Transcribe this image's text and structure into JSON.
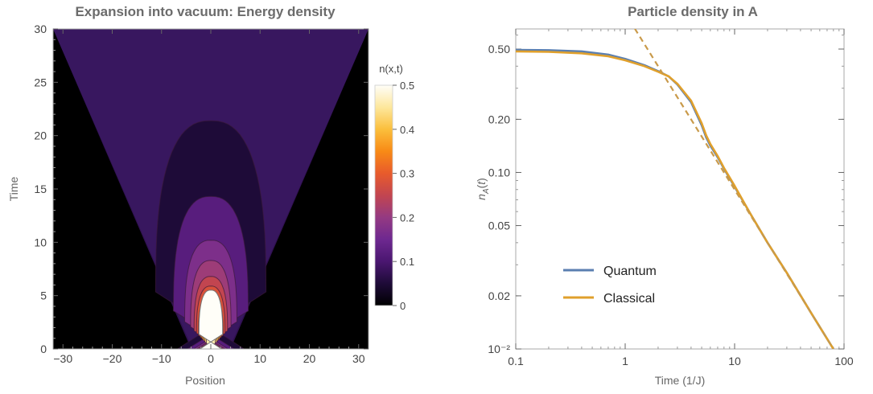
{
  "chart_data": [
    {
      "type": "heatmap",
      "title": "Expansion into vacuum: Energy density",
      "xlabel": "Position",
      "ylabel": "Time",
      "xlim": [
        -32,
        32
      ],
      "ylim": [
        0,
        30
      ],
      "xticks": [
        -30,
        -20,
        -10,
        0,
        10,
        20,
        30
      ],
      "xtick_labels": [
        "−30",
        "−20",
        "−10",
        "0",
        "10",
        "20",
        "30"
      ],
      "yticks": [
        0,
        5,
        10,
        15,
        20,
        25,
        30
      ],
      "ytick_labels": [
        "0",
        "5",
        "10",
        "15",
        "20",
        "25",
        "30"
      ],
      "colorbar": {
        "label": "n(x,t)",
        "range": [
          0,
          0.5
        ],
        "ticks": [
          0,
          0.1,
          0.2,
          0.3,
          0.4,
          0.5
        ],
        "tick_labels": [
          "0",
          "0.1",
          "0.2",
          "0.3",
          "0.4",
          "0.5"
        ]
      },
      "light_cone": {
        "edge_x_at_t0": 4,
        "edge_x_at_t30": 32,
        "edge_time_at_x32": 16.7
      },
      "contours": [
        {
          "level": 0.05,
          "half_width": 11.2,
          "t_top": 21.4
        },
        {
          "level": 0.12,
          "half_width": 7.6,
          "t_top": 14.3
        },
        {
          "level": 0.17,
          "half_width": 5.3,
          "t_top": 10.2
        },
        {
          "level": 0.21,
          "half_width": 4.1,
          "t_top": 8.3
        },
        {
          "level": 0.25,
          "half_width": 3.4,
          "t_top": 6.8
        },
        {
          "level": 0.28,
          "half_width": 2.9,
          "t_top": 5.9
        },
        {
          "level": 0.31,
          "half_width": 2.5,
          "t_top": 5.1
        },
        {
          "level": 0.34,
          "half_width": 2.1,
          "t_top": 4.4
        },
        {
          "level": 0.37,
          "half_width": 1.8,
          "t_top": 3.8
        },
        {
          "level": 0.4,
          "half_width": 1.5,
          "t_top": 3.2
        },
        {
          "level": 0.43,
          "half_width": 1.2,
          "t_top": 2.6
        },
        {
          "level": 0.46,
          "half_width": 0.9,
          "t_top": 2.1
        }
      ],
      "core": {
        "half_width": 4,
        "t_top": 2.4
      }
    },
    {
      "type": "line",
      "title": "Particle density in A",
      "xlabel": "Time (1/J)",
      "ylabel": "n_A(t)",
      "x_scale": "log",
      "y_scale": "log",
      "xlim": [
        0.1,
        100
      ],
      "ylim": [
        0.01,
        0.65
      ],
      "xticks": [
        0.1,
        1,
        10,
        100
      ],
      "xtick_labels": [
        "0.1",
        "1",
        "10",
        "100"
      ],
      "yticks": [
        0.01,
        0.02,
        0.05,
        0.1,
        0.2,
        0.5
      ],
      "ytick_labels": [
        "10⁻²",
        "0.02",
        "0.05",
        "0.10",
        "0.20",
        "0.50"
      ],
      "legend_position": "bottom-left",
      "series": [
        {
          "name": "Quantum",
          "color": "#5b7fb0",
          "x": [
            0.1,
            0.2,
            0.4,
            0.7,
            1.0,
            1.5,
            2.0,
            2.5,
            3.0,
            4.0,
            5.0,
            5.5,
            6.0,
            7.0,
            8.0,
            10,
            14,
            20,
            30,
            50,
            80
          ],
          "y": [
            0.495,
            0.493,
            0.485,
            0.465,
            0.44,
            0.405,
            0.375,
            0.35,
            0.315,
            0.25,
            0.185,
            0.158,
            0.142,
            0.122,
            0.105,
            0.083,
            0.058,
            0.04,
            0.027,
            0.016,
            0.01
          ]
        },
        {
          "name": "Classical",
          "color": "#e0a02c",
          "x": [
            0.1,
            0.2,
            0.4,
            0.7,
            1.0,
            1.5,
            2.0,
            2.5,
            3.0,
            4.0,
            5.0,
            5.5,
            6.0,
            7.0,
            8.0,
            10,
            14,
            20,
            30,
            50,
            80
          ],
          "y": [
            0.485,
            0.482,
            0.473,
            0.455,
            0.432,
            0.4,
            0.372,
            0.35,
            0.318,
            0.255,
            0.19,
            0.162,
            0.145,
            0.124,
            0.106,
            0.084,
            0.058,
            0.04,
            0.027,
            0.016,
            0.01
          ]
        },
        {
          "style": "dashed",
          "color": "#c99a4a",
          "x": [
            1.1,
            80
          ],
          "y": [
            0.727,
            0.01
          ]
        }
      ]
    }
  ]
}
